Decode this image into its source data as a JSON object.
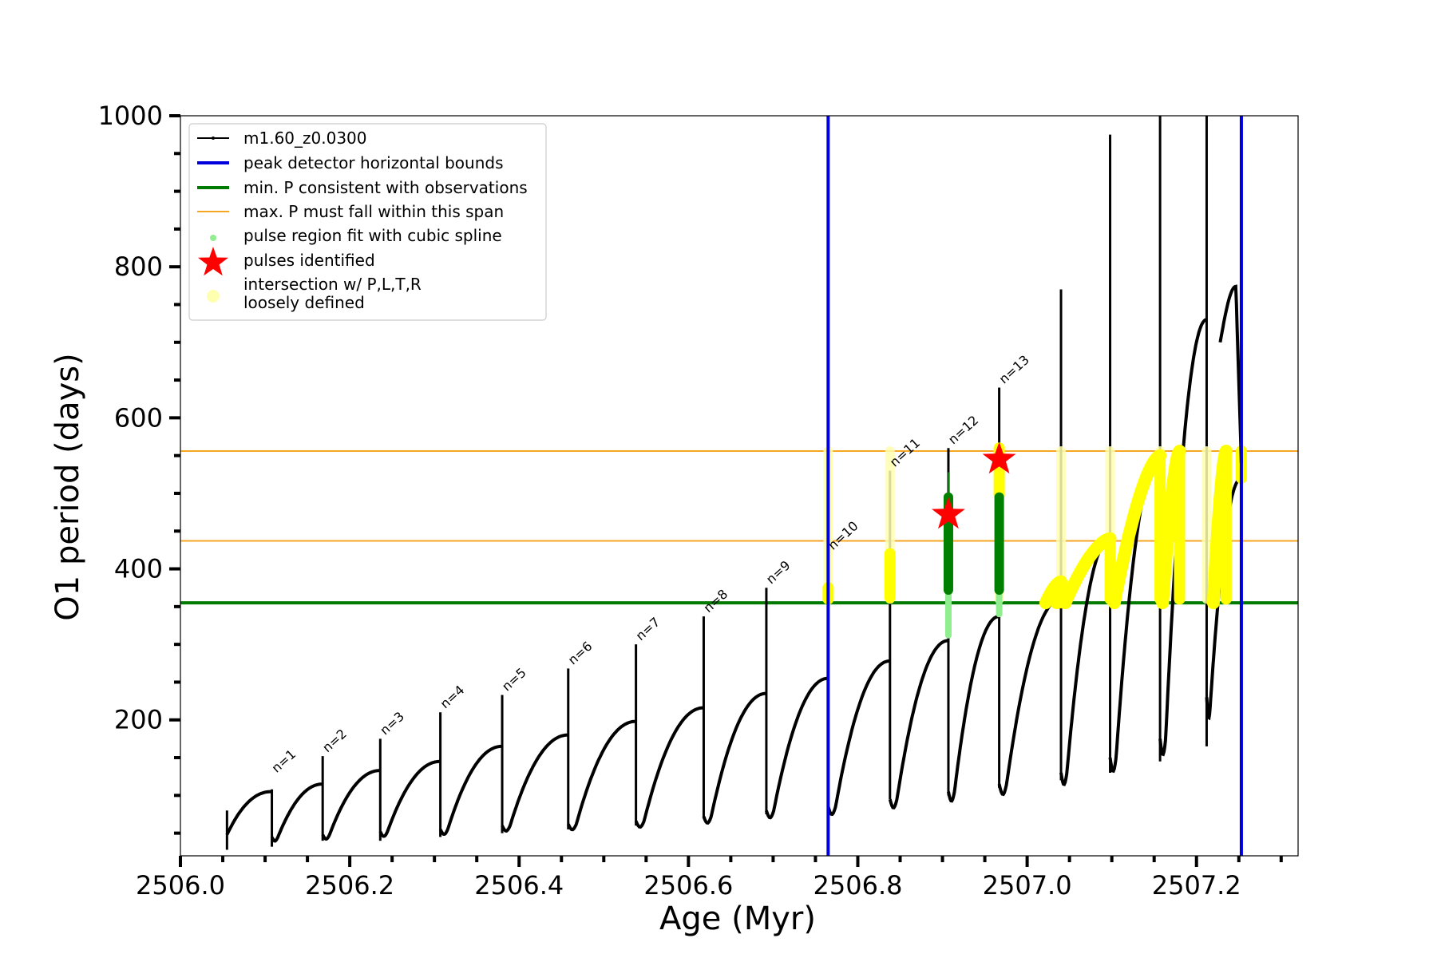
{
  "chart_data": {
    "type": "line",
    "title": "",
    "xlabel": "Age (Myr)",
    "ylabel": "O1 period (days)",
    "xlim": [
      2506.0,
      2507.32
    ],
    "ylim": [
      20,
      1000
    ],
    "xticks": [
      {
        "value": 2506.0,
        "label": "2506.0"
      },
      {
        "value": 2506.2,
        "label": "2506.2"
      },
      {
        "value": 2506.4,
        "label": "2506.4"
      },
      {
        "value": 2506.6,
        "label": "2506.6"
      },
      {
        "value": 2506.8,
        "label": "2506.8"
      },
      {
        "value": 2507.0,
        "label": "2507.0"
      },
      {
        "value": 2507.2,
        "label": "2507.2"
      }
    ],
    "yticks": [
      {
        "value": 200,
        "label": "200"
      },
      {
        "value": 400,
        "label": "400"
      },
      {
        "value": 600,
        "label": "600"
      },
      {
        "value": 800,
        "label": "800"
      },
      {
        "value": 1000,
        "label": "1000"
      }
    ],
    "grid": false,
    "legend_position": "top-left",
    "colors": {
      "track": "#000000",
      "bounds": "#0000dd",
      "min_p": "#007a00",
      "max_p": "#f5a623",
      "spline": "#90ee90",
      "fit_green": "#008000",
      "stars": "#ff0000",
      "intersection": "#ffff00",
      "loose": "#ffffb0"
    },
    "series": [
      {
        "name": "m1.60_z0.0300",
        "type": "line",
        "color": "#000000"
      },
      {
        "name": "peak detector horizontal bounds",
        "type": "vline",
        "color": "#0000dd",
        "x": [
          2506.765,
          2507.253
        ]
      },
      {
        "name": "min. P consistent with observations",
        "type": "hline",
        "color": "#007a00",
        "y": 355
      },
      {
        "name": "max. P must fall within this span",
        "type": "hline",
        "color": "#f5a623",
        "y": [
          437,
          556
        ]
      },
      {
        "name": "pulses identified",
        "type": "scatter",
        "color": "#ff0000",
        "points": [
          {
            "x": 2506.907,
            "y": 472
          },
          {
            "x": 2506.967,
            "y": 545
          }
        ]
      }
    ],
    "legend": [
      {
        "label": "m1.60_z0.0300",
        "style": "line-dot",
        "color": "#000000"
      },
      {
        "label": "peak detector horizontal bounds",
        "style": "line-thick",
        "color": "#0000dd"
      },
      {
        "label": "min. P consistent with observations",
        "style": "line-thick",
        "color": "#007a00"
      },
      {
        "label": "max. P must fall within this span",
        "style": "line-thin",
        "color": "#f5a623"
      },
      {
        "label": "pulse region fit with cubic spline",
        "style": "dot",
        "color": "#90ee90"
      },
      {
        "label": "pulses identified",
        "style": "star",
        "color": "#ff0000"
      },
      {
        "label": "intersection w/ P,L,T,R",
        "label2": "loosely defined",
        "style": "circle",
        "color": "#ffffb0"
      }
    ],
    "pulses": [
      {
        "label": "n=1",
        "x_start": 2506.108,
        "x_end": 2506.168,
        "p_start": 45,
        "p_end": 115,
        "spike": 0,
        "spike_min": 0
      },
      {
        "label": "n=2",
        "x_start": 2506.168,
        "x_end": 2506.236,
        "p_start": 48,
        "p_end": 133,
        "spike": 152,
        "spike_min": 40
      },
      {
        "label": "n=3",
        "x_start": 2506.236,
        "x_end": 2506.307,
        "p_start": 52,
        "p_end": 145,
        "spike": 175,
        "spike_min": 40
      },
      {
        "label": "n=4",
        "x_start": 2506.307,
        "x_end": 2506.38,
        "p_start": 55,
        "p_end": 165,
        "spike": 210,
        "spike_min": 45
      },
      {
        "label": "n=5",
        "x_start": 2506.38,
        "x_end": 2506.458,
        "p_start": 60,
        "p_end": 180,
        "spike": 233,
        "spike_min": 50
      },
      {
        "label": "n=6",
        "x_start": 2506.458,
        "x_end": 2506.538,
        "p_start": 62,
        "p_end": 198,
        "spike": 268,
        "spike_min": 55
      },
      {
        "label": "n=7",
        "x_start": 2506.538,
        "x_end": 2506.618,
        "p_start": 66,
        "p_end": 216,
        "spike": 300,
        "spike_min": 60
      },
      {
        "label": "n=8",
        "x_start": 2506.618,
        "x_end": 2506.692,
        "p_start": 72,
        "p_end": 235,
        "spike": 337,
        "spike_min": 70
      },
      {
        "label": "n=9",
        "x_start": 2506.692,
        "x_end": 2506.765,
        "p_start": 80,
        "p_end": 255,
        "spike": 375,
        "spike_min": 75
      },
      {
        "label": "n=10",
        "x_start": 2506.765,
        "x_end": 2506.838,
        "p_start": 85,
        "p_end": 278,
        "spike": 420,
        "spike_min": 90
      },
      {
        "label": "n=11",
        "x_start": 2506.838,
        "x_end": 2506.907,
        "p_start": 95,
        "p_end": 305,
        "spike": 530,
        "spike_min": 95
      },
      {
        "label": "n=12",
        "x_start": 2506.907,
        "x_end": 2506.967,
        "p_start": 105,
        "p_end": 337,
        "spike": 560,
        "spike_min": 100
      },
      {
        "label": "n=13",
        "x_start": 2506.967,
        "x_end": 2507.04,
        "p_start": 115,
        "p_end": 360,
        "spike": 640,
        "spike_min": 110
      },
      {
        "label": "",
        "x_start": 2507.04,
        "x_end": 2507.098,
        "p_start": 130,
        "p_end": 440,
        "spike": 770,
        "spike_min": 120
      },
      {
        "label": "",
        "x_start": 2507.098,
        "x_end": 2507.157,
        "p_start": 150,
        "p_end": 550,
        "spike": 975,
        "spike_min": 130
      },
      {
        "label": "",
        "x_start": 2507.157,
        "x_end": 2507.212,
        "p_start": 175,
        "p_end": 730,
        "spike": 1000,
        "spike_min": 145
      },
      {
        "label": "",
        "x_start": 2507.212,
        "x_end": 2507.253,
        "p_start": 230,
        "p_end": 520,
        "spike": 1000,
        "spike_min": 165
      }
    ]
  }
}
